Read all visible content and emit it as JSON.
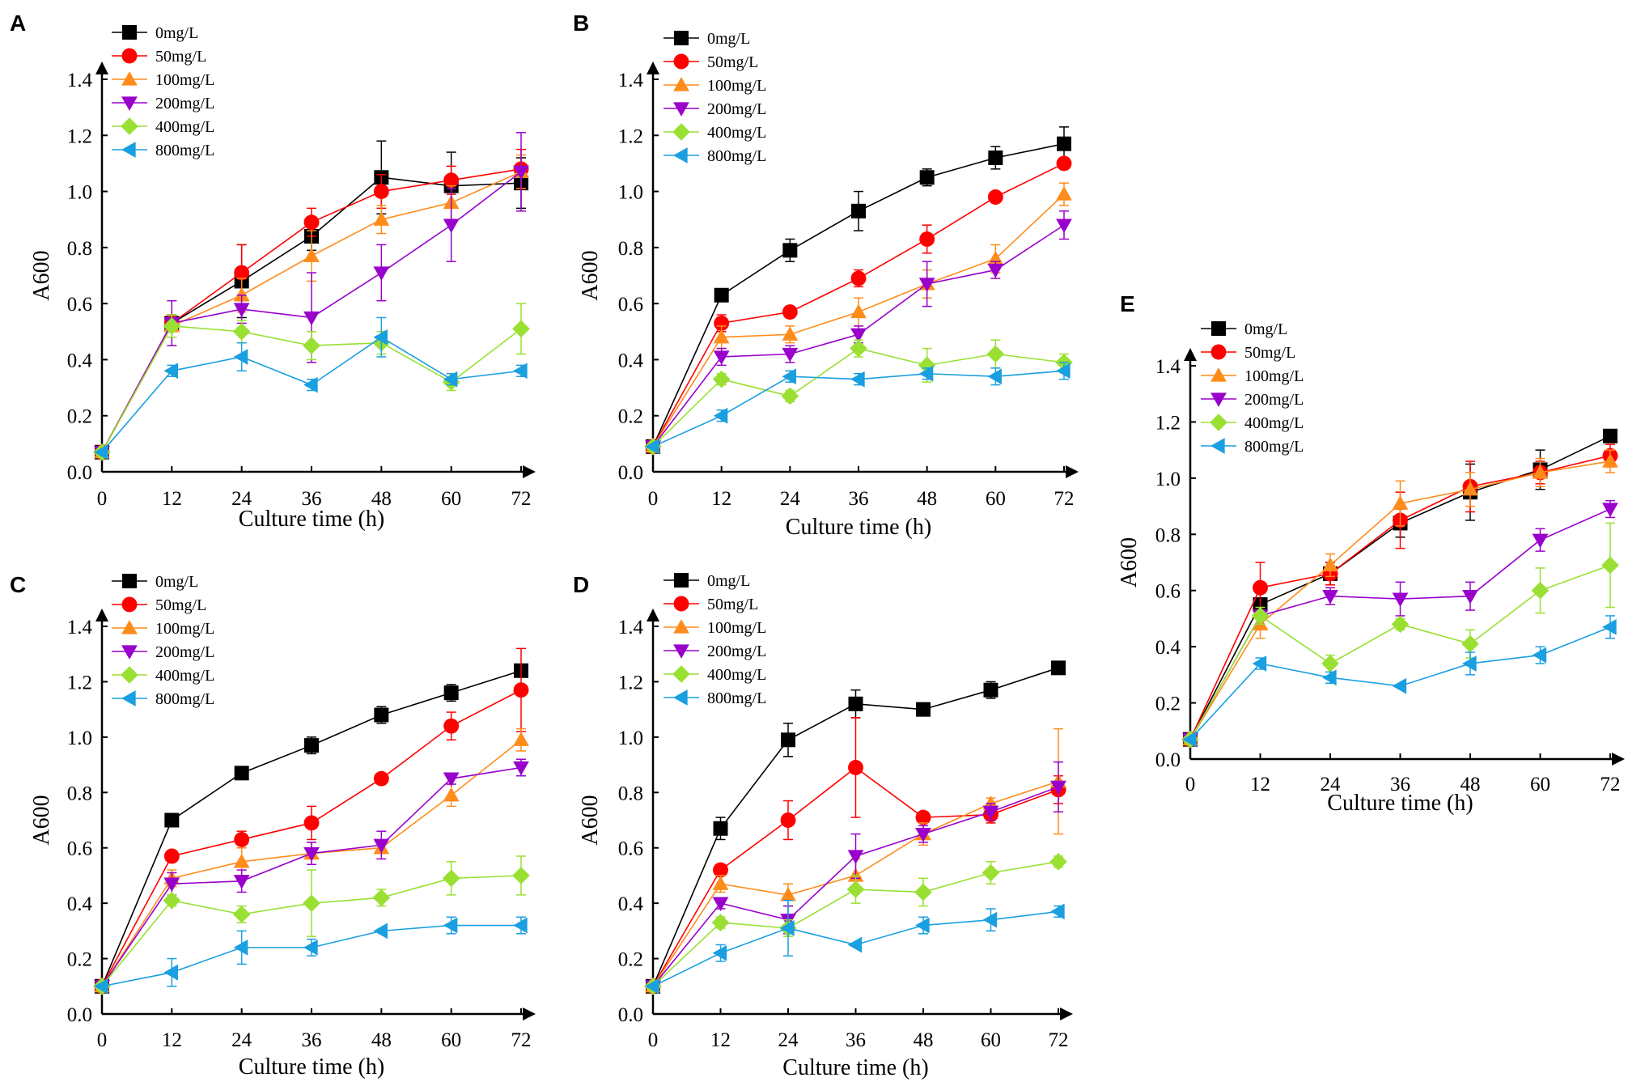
{
  "figure": {
    "series_styles": [
      {
        "name": "0mg/L",
        "color": "#000000",
        "marker": "square"
      },
      {
        "name": "50mg/L",
        "color": "#ff0000",
        "marker": "circle"
      },
      {
        "name": "100mg/L",
        "color": "#ff8c1a",
        "marker": "triangle-up"
      },
      {
        "name": "200mg/L",
        "color": "#9900cc",
        "marker": "triangle-down"
      },
      {
        "name": "400mg/L",
        "color": "#99e033",
        "marker": "diamond"
      },
      {
        "name": "800mg/L",
        "color": "#1a9fe0",
        "marker": "triangle-left"
      }
    ]
  },
  "chart_data": [
    {
      "panel": "A",
      "type": "line",
      "xlabel": "Culture time (h)",
      "ylabel": "A600",
      "x": [
        0,
        12,
        24,
        36,
        48,
        60,
        72
      ],
      "xticks": [
        "0",
        "12",
        "24",
        "36",
        "48",
        "60",
        "72"
      ],
      "ylim": [
        0,
        1.4
      ],
      "yticks": [
        "0.0",
        "0.2",
        "0.4",
        "0.6",
        "0.8",
        "1.0",
        "1.2",
        "1.4"
      ],
      "legend_position": "top-left",
      "series": [
        {
          "name": "0mg/L",
          "values": [
            0.07,
            0.53,
            0.68,
            0.84,
            1.05,
            1.02,
            1.03
          ],
          "errors": [
            0.01,
            0.02,
            0.13,
            0.05,
            0.13,
            0.12,
            0.09
          ]
        },
        {
          "name": "50mg/L",
          "values": [
            0.07,
            0.53,
            0.71,
            0.89,
            1.0,
            1.04,
            1.08
          ],
          "errors": [
            0.01,
            0.03,
            0.1,
            0.05,
            0.06,
            0.05,
            0.07
          ]
        },
        {
          "name": "100mg/L",
          "values": [
            0.07,
            0.52,
            0.63,
            0.77,
            0.9,
            0.96,
            1.07
          ],
          "errors": [
            0.01,
            0.04,
            0.06,
            0.09,
            0.05,
            0.06,
            0.06
          ]
        },
        {
          "name": "200mg/L",
          "values": [
            0.07,
            0.53,
            0.58,
            0.55,
            0.71,
            0.88,
            1.07
          ],
          "errors": [
            0.01,
            0.08,
            0.05,
            0.16,
            0.1,
            0.13,
            0.14
          ]
        },
        {
          "name": "400mg/L",
          "values": [
            0.07,
            0.52,
            0.5,
            0.45,
            0.46,
            0.32,
            0.51
          ],
          "errors": [
            0.01,
            0.04,
            0.04,
            0.05,
            0.04,
            0.03,
            0.09
          ]
        },
        {
          "name": "800mg/L",
          "values": [
            0.07,
            0.36,
            0.41,
            0.31,
            0.48,
            0.33,
            0.36
          ],
          "errors": [
            0.01,
            0.02,
            0.05,
            0.02,
            0.07,
            0.02,
            0.02
          ]
        }
      ]
    },
    {
      "panel": "B",
      "type": "line",
      "xlabel": "Culture time (h)",
      "ylabel": "A600",
      "x": [
        0,
        12,
        24,
        36,
        48,
        60,
        72
      ],
      "xticks": [
        "0",
        "12",
        "24",
        "36",
        "48",
        "60",
        "72"
      ],
      "ylim": [
        0,
        1.4
      ],
      "yticks": [
        "0.0",
        "0.2",
        "0.4",
        "0.6",
        "0.8",
        "1.0",
        "1.2",
        "1.4"
      ],
      "legend_position": "top-left",
      "series": [
        {
          "name": "0mg/L",
          "values": [
            0.09,
            0.63,
            0.79,
            0.93,
            1.05,
            1.12,
            1.17
          ],
          "errors": [
            0.01,
            0.02,
            0.04,
            0.07,
            0.03,
            0.04,
            0.06
          ]
        },
        {
          "name": "50mg/L",
          "values": [
            0.09,
            0.53,
            0.57,
            0.69,
            0.83,
            0.98,
            1.1
          ],
          "errors": [
            0.01,
            0.03,
            0.02,
            0.03,
            0.05,
            0.01,
            0.02
          ]
        },
        {
          "name": "100mg/L",
          "values": [
            0.09,
            0.48,
            0.49,
            0.57,
            0.67,
            0.76,
            0.99
          ],
          "errors": [
            0.01,
            0.04,
            0.03,
            0.05,
            0.05,
            0.05,
            0.04
          ]
        },
        {
          "name": "200mg/L",
          "values": [
            0.09,
            0.41,
            0.42,
            0.49,
            0.67,
            0.72,
            0.88
          ],
          "errors": [
            0.01,
            0.03,
            0.03,
            0.03,
            0.08,
            0.03,
            0.05
          ]
        },
        {
          "name": "400mg/L",
          "values": [
            0.09,
            0.33,
            0.27,
            0.44,
            0.38,
            0.42,
            0.39
          ],
          "errors": [
            0.01,
            0.02,
            0.02,
            0.03,
            0.06,
            0.05,
            0.03
          ]
        },
        {
          "name": "800mg/L",
          "values": [
            0.09,
            0.2,
            0.34,
            0.33,
            0.35,
            0.34,
            0.36
          ],
          "errors": [
            0.01,
            0.02,
            0.02,
            0.02,
            0.02,
            0.03,
            0.03
          ]
        }
      ]
    },
    {
      "panel": "C",
      "type": "line",
      "xlabel": "Culture time (h)",
      "ylabel": "A600",
      "x": [
        0,
        12,
        24,
        36,
        48,
        60,
        72
      ],
      "xticks": [
        "0",
        "12",
        "24",
        "36",
        "48",
        "60",
        "72"
      ],
      "ylim": [
        0,
        1.4
      ],
      "yticks": [
        "0.0",
        "0.2",
        "0.4",
        "0.6",
        "0.8",
        "1.0",
        "1.2",
        "1.4"
      ],
      "legend_position": "top-left",
      "series": [
        {
          "name": "0mg/L",
          "values": [
            0.1,
            0.7,
            0.87,
            0.97,
            1.08,
            1.16,
            1.24
          ],
          "errors": [
            0.01,
            0.01,
            0.01,
            0.03,
            0.03,
            0.03,
            0.02
          ]
        },
        {
          "name": "50mg/L",
          "values": [
            0.1,
            0.57,
            0.63,
            0.69,
            0.85,
            1.04,
            1.17
          ],
          "errors": [
            0.01,
            0.02,
            0.03,
            0.06,
            0.01,
            0.05,
            0.15
          ]
        },
        {
          "name": "100mg/L",
          "values": [
            0.1,
            0.49,
            0.55,
            0.58,
            0.6,
            0.79,
            0.99
          ],
          "errors": [
            0.01,
            0.03,
            0.05,
            0.04,
            0.02,
            0.04,
            0.04
          ]
        },
        {
          "name": "200mg/L",
          "values": [
            0.1,
            0.47,
            0.48,
            0.58,
            0.61,
            0.85,
            0.89
          ],
          "errors": [
            0.01,
            0.04,
            0.04,
            0.04,
            0.05,
            0.02,
            0.03
          ]
        },
        {
          "name": "400mg/L",
          "values": [
            0.1,
            0.41,
            0.36,
            0.4,
            0.42,
            0.49,
            0.5
          ],
          "errors": [
            0.01,
            0.02,
            0.03,
            0.12,
            0.03,
            0.06,
            0.07
          ]
        },
        {
          "name": "800mg/L",
          "values": [
            0.1,
            0.15,
            0.24,
            0.24,
            0.3,
            0.32,
            0.32
          ],
          "errors": [
            0.01,
            0.05,
            0.06,
            0.03,
            0.01,
            0.03,
            0.03
          ]
        }
      ]
    },
    {
      "panel": "D",
      "type": "line",
      "xlabel": "Culture time (h)",
      "ylabel": "A600",
      "x": [
        0,
        12,
        24,
        36,
        48,
        60,
        72
      ],
      "xticks": [
        "0",
        "12",
        "24",
        "36",
        "48",
        "60",
        "72"
      ],
      "ylim": [
        0,
        1.4
      ],
      "yticks": [
        "0.0",
        "0.2",
        "0.4",
        "0.6",
        "0.8",
        "1.0",
        "1.2",
        "1.4"
      ],
      "legend_position": "top-left",
      "series": [
        {
          "name": "0mg/L",
          "values": [
            0.1,
            0.67,
            0.99,
            1.12,
            1.1,
            1.17,
            1.25
          ],
          "errors": [
            0.01,
            0.04,
            0.06,
            0.05,
            0.02,
            0.03,
            0.02
          ]
        },
        {
          "name": "50mg/L",
          "values": [
            0.1,
            0.52,
            0.7,
            0.89,
            0.71,
            0.72,
            0.81
          ],
          "errors": [
            0.01,
            0.02,
            0.07,
            0.18,
            0.02,
            0.03,
            0.05
          ]
        },
        {
          "name": "100mg/L",
          "values": [
            0.1,
            0.47,
            0.43,
            0.5,
            0.65,
            0.76,
            0.84
          ],
          "errors": [
            0.01,
            0.03,
            0.04,
            0.06,
            0.04,
            0.02,
            0.19
          ]
        },
        {
          "name": "200mg/L",
          "values": [
            0.1,
            0.4,
            0.34,
            0.57,
            0.65,
            0.73,
            0.82
          ],
          "errors": [
            0.01,
            0.02,
            0.05,
            0.08,
            0.03,
            0.03,
            0.09
          ]
        },
        {
          "name": "400mg/L",
          "values": [
            0.1,
            0.33,
            0.31,
            0.45,
            0.44,
            0.51,
            0.55
          ],
          "errors": [
            0.01,
            0.02,
            0.03,
            0.05,
            0.05,
            0.04,
            0.02
          ]
        },
        {
          "name": "800mg/L",
          "values": [
            0.1,
            0.22,
            0.31,
            0.25,
            0.32,
            0.34,
            0.37
          ],
          "errors": [
            0.01,
            0.03,
            0.1,
            0.01,
            0.03,
            0.04,
            0.02
          ]
        }
      ]
    },
    {
      "panel": "E",
      "type": "line",
      "xlabel": "Culture time (h)",
      "ylabel": "A600",
      "x": [
        0,
        12,
        24,
        36,
        48,
        60,
        72
      ],
      "xticks": [
        "0",
        "12",
        "24",
        "36",
        "48",
        "60",
        "72"
      ],
      "ylim": [
        0,
        1.4
      ],
      "yticks": [
        "0.0",
        "0.2",
        "0.4",
        "0.6",
        "0.8",
        "1.0",
        "1.2",
        "1.4"
      ],
      "legend_position": "top-left",
      "series": [
        {
          "name": "0mg/L",
          "values": [
            0.07,
            0.55,
            0.66,
            0.84,
            0.95,
            1.03,
            1.15
          ],
          "errors": [
            0.01,
            0.04,
            0.04,
            0.05,
            0.1,
            0.07,
            0.02
          ]
        },
        {
          "name": "50mg/L",
          "values": [
            0.07,
            0.61,
            0.66,
            0.85,
            0.97,
            1.02,
            1.08
          ],
          "errors": [
            0.01,
            0.09,
            0.04,
            0.1,
            0.09,
            0.04,
            0.04
          ]
        },
        {
          "name": "100mg/L",
          "values": [
            0.07,
            0.48,
            0.69,
            0.91,
            0.96,
            1.02,
            1.06
          ],
          "errors": [
            0.01,
            0.05,
            0.04,
            0.08,
            0.06,
            0.05,
            0.04
          ]
        },
        {
          "name": "200mg/L",
          "values": [
            0.07,
            0.51,
            0.58,
            0.57,
            0.58,
            0.78,
            0.89
          ],
          "errors": [
            0.01,
            0.03,
            0.03,
            0.06,
            0.05,
            0.04,
            0.03
          ]
        },
        {
          "name": "400mg/L",
          "values": [
            0.07,
            0.51,
            0.34,
            0.48,
            0.41,
            0.6,
            0.69
          ],
          "errors": [
            0.01,
            0.03,
            0.03,
            0.02,
            0.05,
            0.08,
            0.15
          ]
        },
        {
          "name": "800mg/L",
          "values": [
            0.07,
            0.34,
            0.29,
            0.26,
            0.34,
            0.37,
            0.47
          ],
          "errors": [
            0.01,
            0.02,
            0.02,
            0.01,
            0.04,
            0.03,
            0.04
          ]
        }
      ]
    }
  ]
}
